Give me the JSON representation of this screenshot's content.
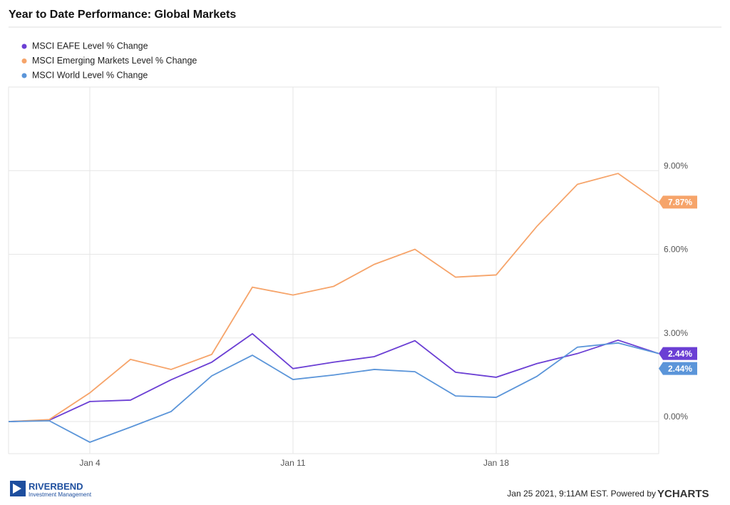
{
  "chart_data": {
    "type": "line",
    "title": "Year to Date Performance: Global Markets",
    "categories": [
      null,
      null,
      "Jan 4",
      null,
      null,
      null,
      null,
      "Jan 11",
      null,
      null,
      null,
      null,
      "Jan 18",
      null,
      null,
      null,
      null
    ],
    "series": [
      {
        "name": "MSCI EAFE Level % Change",
        "color": "#6b3fd4",
        "values": [
          0,
          0.05,
          0.72,
          0.77,
          1.5,
          2.13,
          3.15,
          1.9,
          2.13,
          2.33,
          2.9,
          1.77,
          1.59,
          2.08,
          2.44,
          2.92,
          2.44
        ],
        "value_labels": [
          null,
          null,
          null,
          null,
          null,
          null,
          null,
          null,
          null,
          null,
          null,
          null,
          null,
          null,
          null,
          null,
          "2.44%"
        ]
      },
      {
        "name": "MSCI Emerging Markets Level % Change",
        "color": "#f6a46a",
        "values": [
          0,
          0.07,
          1.03,
          2.23,
          1.87,
          2.41,
          4.82,
          4.54,
          4.85,
          5.64,
          6.18,
          5.18,
          5.26,
          7.0,
          8.51,
          8.9,
          7.87
        ],
        "value_labels": [
          null,
          null,
          null,
          null,
          null,
          null,
          null,
          null,
          null,
          null,
          null,
          null,
          null,
          null,
          null,
          null,
          "7.87%"
        ]
      },
      {
        "name": "MSCI World Level % Change",
        "color": "#5b95d9",
        "values": [
          0,
          0.03,
          -0.74,
          -0.2,
          0.36,
          1.64,
          2.38,
          1.51,
          1.67,
          1.87,
          1.79,
          0.92,
          0.87,
          1.62,
          2.67,
          2.82,
          2.44
        ],
        "value_labels": [
          null,
          null,
          null,
          null,
          null,
          null,
          null,
          null,
          null,
          null,
          null,
          null,
          null,
          null,
          null,
          null,
          "2.44%"
        ]
      }
    ],
    "ylim": [
      -1.15,
      12
    ],
    "yticks": [
      {
        "value": 0,
        "label": "0.00%"
      },
      {
        "value": 3,
        "label": "3.00%"
      },
      {
        "value": 6,
        "label": "6.00%"
      },
      {
        "value": 9,
        "label": "9.00%"
      }
    ],
    "grid": true,
    "legend": "top-left"
  },
  "footer": {
    "logo": "RIVERBEND",
    "logo_sub": "Investment Management",
    "timestamp": "Jan 25 2021, 9:11AM EST. Powered by",
    "brand": "YCHARTS"
  }
}
